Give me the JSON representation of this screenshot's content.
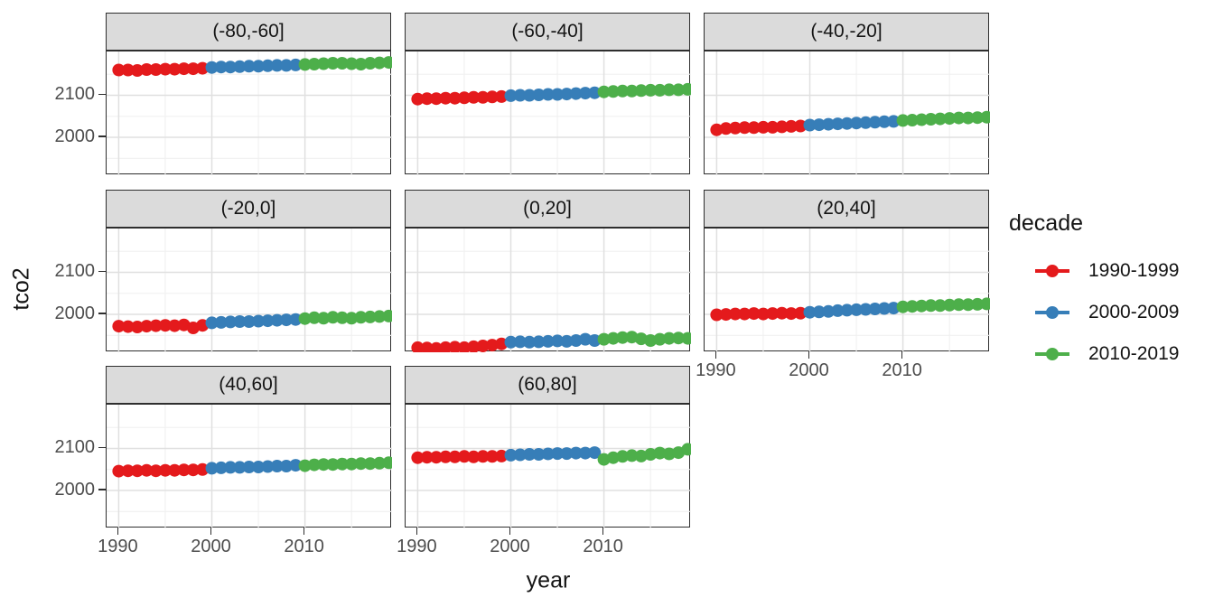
{
  "figure": {
    "x_axis_title": "year",
    "y_axis_title": "tco2",
    "x_tick_labels": [
      "1990",
      "2000",
      "2010"
    ],
    "y_tick_labels": [
      "2100",
      "2000"
    ],
    "legend": {
      "title": "decade",
      "entries": [
        {
          "label": "1990-1999",
          "color": "#E41A1C"
        },
        {
          "label": "2000-2009",
          "color": "#377EB8"
        },
        {
          "label": "2010-2019",
          "color": "#4DAF4A"
        }
      ]
    }
  },
  "chart_data": {
    "type": "scatter",
    "title": "",
    "xlabel": "year",
    "ylabel": "tco2",
    "legend_title": "decade",
    "legend_position": "right",
    "grid": "on",
    "x_ticks": [
      1990,
      2000,
      2010
    ],
    "y_ticks": [
      2100,
      2000
    ],
    "x_minor_gridlines": [
      1995,
      2005,
      2015
    ],
    "y_minor_gridlines": [
      1950,
      2050,
      2150
    ],
    "x_range": [
      1988.7,
      2019.35
    ],
    "y_range": [
      1910,
      2204
    ],
    "years": [
      1990,
      1991,
      1992,
      1993,
      1994,
      1995,
      1996,
      1997,
      1998,
      1999,
      2000,
      2001,
      2002,
      2003,
      2004,
      2005,
      2006,
      2007,
      2008,
      2009,
      2010,
      2011,
      2012,
      2013,
      2014,
      2015,
      2016,
      2017,
      2018,
      2019
    ],
    "series": [
      {
        "name": "1990-1999",
        "color": "#E41A1C",
        "start_year": 1990,
        "end_year": 1999
      },
      {
        "name": "2000-2009",
        "color": "#377EB8",
        "start_year": 2000,
        "end_year": 2009
      },
      {
        "name": "2010-2019",
        "color": "#4DAF4A",
        "start_year": 2010,
        "end_year": 2019
      }
    ],
    "facets": [
      {
        "label": "(-80,-60]",
        "tco2": [
          2160,
          2160,
          2159,
          2161,
          2161,
          2162,
          2162,
          2163,
          2163,
          2164,
          2166,
          2167,
          2167,
          2168,
          2169,
          2169,
          2170,
          2171,
          2171,
          2172,
          2173,
          2174,
          2175,
          2176,
          2176,
          2175,
          2174,
          2176,
          2177,
          2178
        ]
      },
      {
        "label": "(-60,-40]",
        "tco2": [
          2091,
          2092,
          2092,
          2093,
          2093,
          2094,
          2095,
          2095,
          2096,
          2097,
          2099,
          2100,
          2100,
          2101,
          2102,
          2102,
          2103,
          2104,
          2105,
          2106,
          2108,
          2109,
          2110,
          2110,
          2111,
          2112,
          2112,
          2113,
          2113,
          2114
        ]
      },
      {
        "label": "(-40,-20]",
        "tco2": [
          2018,
          2021,
          2022,
          2023,
          2023,
          2024,
          2024,
          2025,
          2026,
          2027,
          2029,
          2030,
          2031,
          2032,
          2033,
          2034,
          2035,
          2036,
          2037,
          2038,
          2040,
          2041,
          2042,
          2043,
          2044,
          2045,
          2046,
          2046,
          2047,
          2048
        ]
      },
      {
        "label": "(-20,0]",
        "tco2": [
          1972,
          1971,
          1970,
          1972,
          1973,
          1974,
          1973,
          1975,
          1968,
          1974,
          1980,
          1981,
          1982,
          1983,
          1983,
          1984,
          1985,
          1986,
          1987,
          1988,
          1990,
          1992,
          1991,
          1993,
          1992,
          1991,
          1993,
          1994,
          1995,
          1996
        ]
      },
      {
        "label": "(0,20]",
        "tco2": [
          1921,
          1920,
          1919,
          1921,
          1922,
          1921,
          1923,
          1925,
          1927,
          1930,
          1934,
          1935,
          1934,
          1935,
          1936,
          1937,
          1936,
          1938,
          1941,
          1938,
          1941,
          1943,
          1945,
          1946,
          1942,
          1938,
          1941,
          1943,
          1944,
          1943
        ]
      },
      {
        "label": "(20,40]",
        "tco2": [
          1999,
          2000,
          2001,
          2001,
          2002,
          2001,
          2002,
          2003,
          2002,
          2003,
          2005,
          2006,
          2007,
          2009,
          2010,
          2011,
          2012,
          2013,
          2014,
          2015,
          2018,
          2019,
          2020,
          2021,
          2021,
          2022,
          2023,
          2023,
          2024,
          2025
        ]
      },
      {
        "label": "(40,60]",
        "tco2": [
          2046,
          2047,
          2047,
          2048,
          2047,
          2048,
          2048,
          2049,
          2049,
          2050,
          2053,
          2054,
          2055,
          2055,
          2056,
          2056,
          2057,
          2058,
          2058,
          2060,
          2059,
          2061,
          2062,
          2062,
          2063,
          2063,
          2064,
          2064,
          2065,
          2066
        ]
      },
      {
        "label": "(60,80]",
        "tco2": [
          2078,
          2079,
          2079,
          2080,
          2080,
          2081,
          2080,
          2081,
          2081,
          2082,
          2084,
          2085,
          2086,
          2086,
          2087,
          2088,
          2088,
          2089,
          2089,
          2090,
          2074,
          2078,
          2081,
          2083,
          2082,
          2086,
          2089,
          2087,
          2090,
          2098
        ]
      }
    ]
  }
}
